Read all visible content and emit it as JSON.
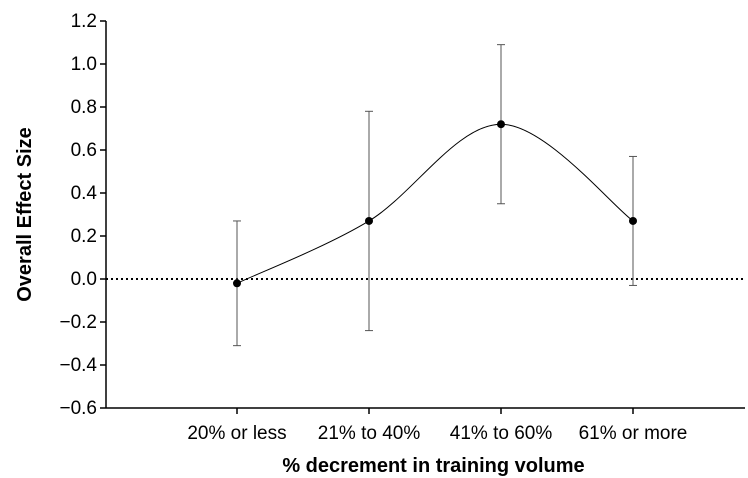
{
  "chart_data": {
    "type": "line",
    "title": "",
    "xlabel": "% decrement in training volume",
    "ylabel": "Overall Effect Size",
    "categories": [
      "20% or less",
      "21% to 40%",
      "41% to 60%",
      "61% or more"
    ],
    "series": [
      {
        "values": [
          -0.02,
          0.27,
          0.72,
          0.27
        ],
        "ci_lower": [
          -0.31,
          -0.24,
          0.35,
          -0.03
        ],
        "ci_upper": [
          0.27,
          0.78,
          1.09,
          0.57
        ]
      }
    ],
    "ylim": [
      -0.6,
      1.2
    ],
    "yticks": [
      1.2,
      1.0,
      0.8,
      0.6,
      0.4,
      0.2,
      0.0,
      -0.2,
      -0.4,
      -0.6
    ],
    "ytick_labels": [
      "1.2",
      "1.0",
      "0.8",
      "0.6",
      "0.4",
      "0.2",
      "0.0",
      "−0.2",
      "−0.4",
      "−0.6"
    ],
    "reference_line": {
      "y": 0.0,
      "style": "dotted"
    },
    "smooth_line": true,
    "grid": false,
    "legend": "none"
  }
}
